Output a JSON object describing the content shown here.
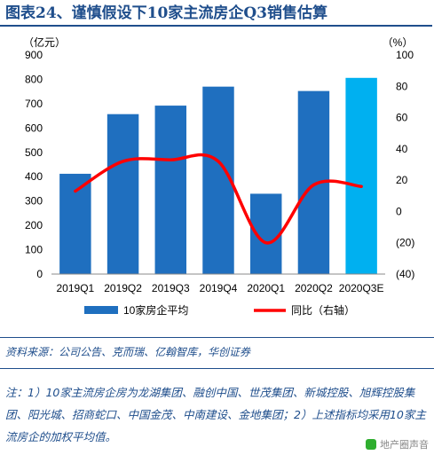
{
  "title": "图表24、谨慎假设下10家主流房企Q3销售估算",
  "source_text": "资料来源：公司公告、克而瑞、亿翰智库，华创证券",
  "note_text": "注：1）10家主流房企房为龙湖集团、融创中国、世茂集团、新城控股、旭辉控股集团、阳光城、招商蛇口、中国金茂、中南建设、金地集团；2）上述指标均采用10家主流房企的加权平均值。",
  "watermark": "地产圈声音",
  "colors": {
    "bar": "#1f6fbf",
    "bar_estimate": "#00b0f0",
    "line": "#ff0000",
    "accent": "#1f4e8c"
  },
  "chart_data": {
    "type": "bar",
    "categories": [
      "2019Q1",
      "2019Q2",
      "2019Q3",
      "2019Q4",
      "2020Q1",
      "2020Q2",
      "2020Q3E"
    ],
    "y_left": {
      "label": "（亿元）",
      "min": 0,
      "max": 900,
      "ticks": [
        "0",
        "100",
        "200",
        "300",
        "400",
        "500",
        "600",
        "700",
        "800",
        "900"
      ]
    },
    "y_right": {
      "label": "（%）",
      "min": -40,
      "max": 100,
      "ticks": [
        "(40)",
        "(20)",
        "0",
        "20",
        "40",
        "60",
        "80",
        "100"
      ]
    },
    "series": [
      {
        "name": "10家房企平均",
        "type": "bar",
        "axis": "left",
        "values": [
          412,
          657,
          692,
          770,
          330,
          752,
          806
        ]
      },
      {
        "name": "同比（右轴）",
        "type": "line",
        "axis": "right",
        "values": [
          13,
          32,
          33,
          32,
          -20,
          17,
          16
        ]
      }
    ],
    "legend_position": "bottom",
    "grid": false
  }
}
